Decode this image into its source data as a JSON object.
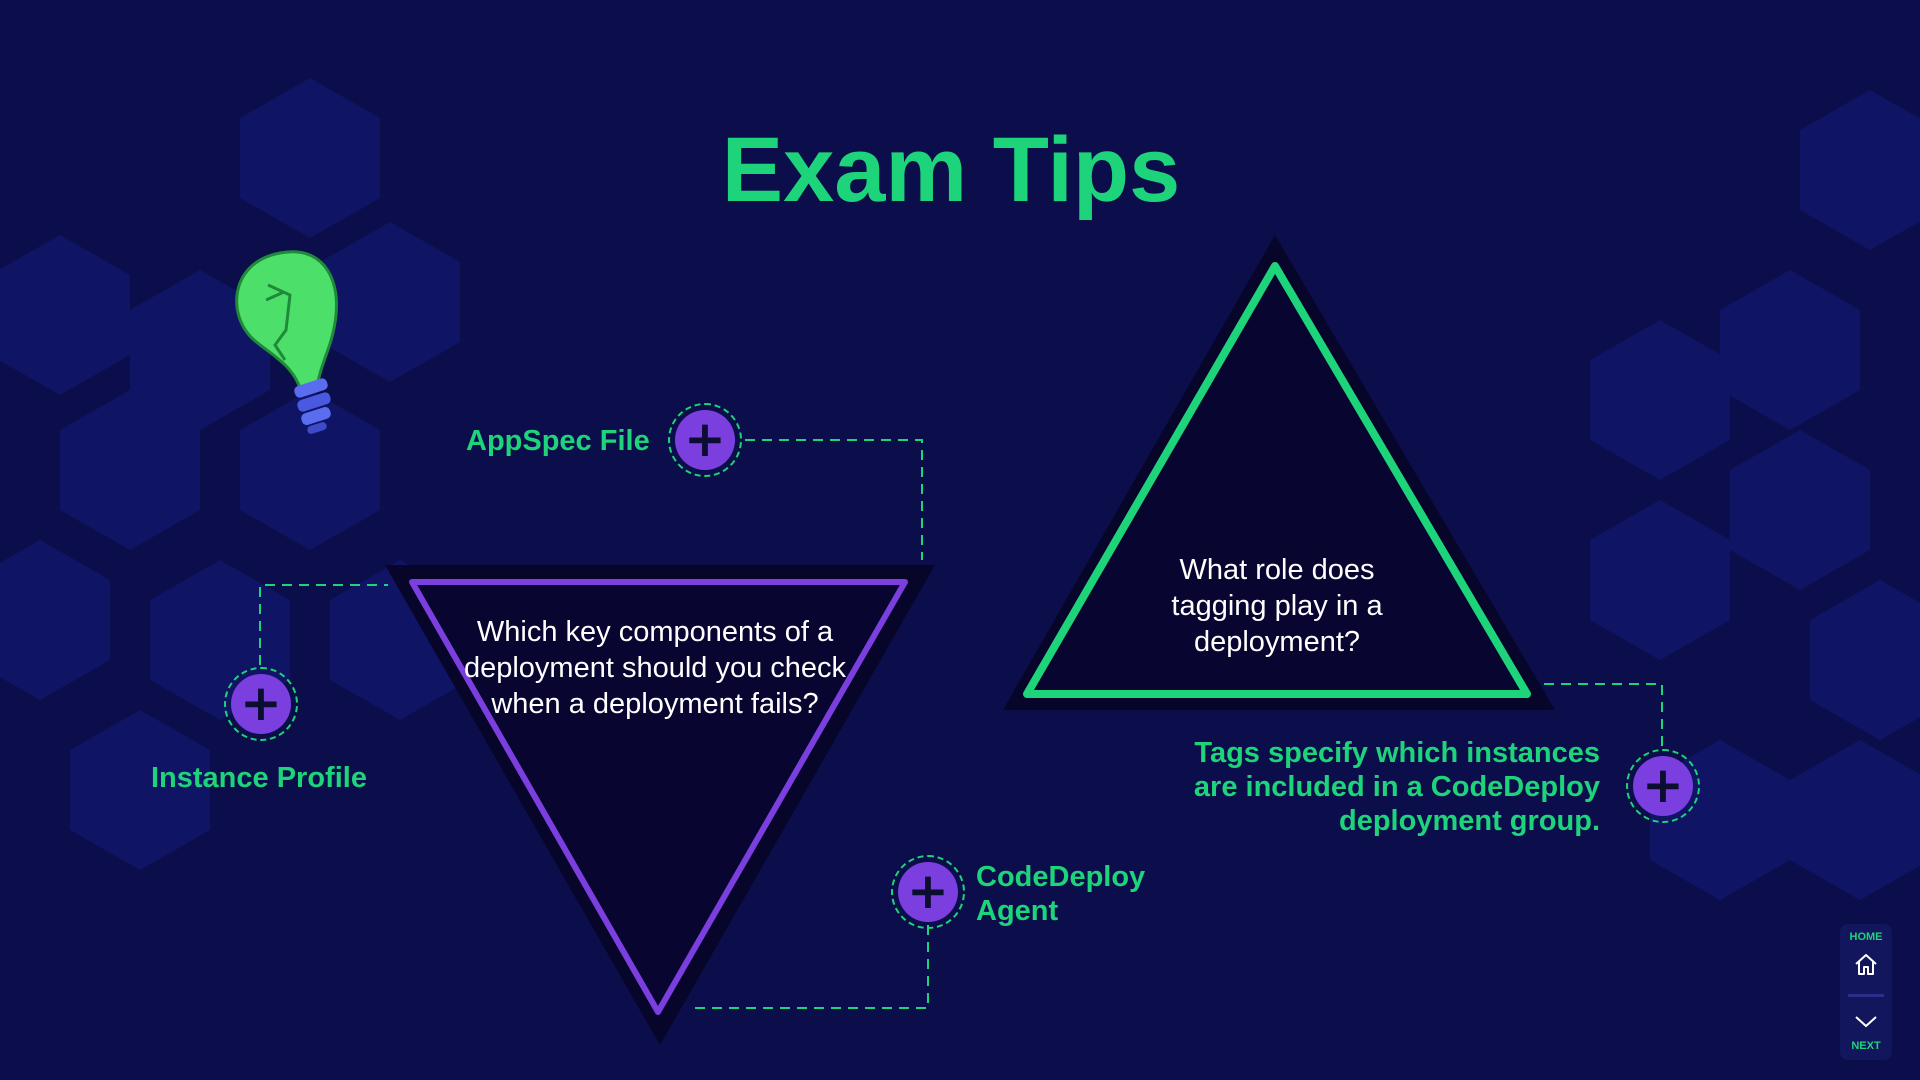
{
  "slide": {
    "title": "Exam Tips"
  },
  "left_triangle": {
    "question": "Which key components of a deployment should you check when a deployment fails?"
  },
  "right_triangle": {
    "question": "What role does tagging play in a deployment?"
  },
  "hotspots": {
    "appspec": {
      "label": "AppSpec File",
      "icon": "plus-icon"
    },
    "instance_profile": {
      "label": "Instance Profile",
      "icon": "plus-icon"
    },
    "agent": {
      "label": "CodeDeploy Agent",
      "icon": "plus-icon"
    },
    "tags": {
      "label": "Tags specify which instances are included in a CodeDeploy deployment group.",
      "icon": "plus-icon"
    }
  },
  "nav": {
    "home_label": "HOME",
    "next_label": "NEXT",
    "home_icon": "home-icon",
    "next_icon": "chevron-down-icon"
  },
  "colors": {
    "background": "#0b0e4a",
    "accent_green": "#1ed47a",
    "accent_purple": "#7b3fe0",
    "triangle_fill": "#080630"
  }
}
